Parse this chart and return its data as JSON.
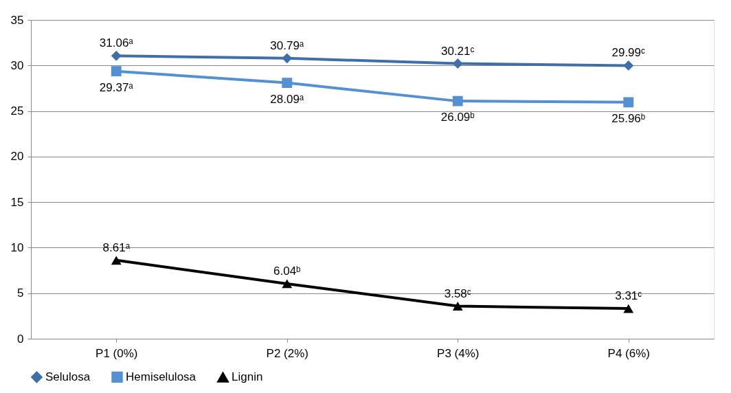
{
  "chart_data": {
    "type": "line",
    "categories": [
      "P1 (0%)",
      "P2 (2%)",
      "P3 (4%)",
      "P4 (6%)"
    ],
    "series": [
      {
        "name": "Selulosa",
        "color": "#3f6fa8",
        "marker": "diamond",
        "values": [
          31.06,
          30.79,
          30.21,
          29.99
        ],
        "value_labels": [
          "31.06ᵃ",
          "30.79ᵃ",
          "30.21ᶜ",
          "29.99ᶜ"
        ]
      },
      {
        "name": "Hemiselulosa",
        "color": "#5591d2",
        "marker": "square",
        "values": [
          29.37,
          28.09,
          26.09,
          25.96
        ],
        "value_labels": [
          "29.37ᵃ",
          "28.09ᵃ",
          "26.09ᵇ",
          "25.96ᵇ"
        ]
      },
      {
        "name": "Lignin",
        "color": "#000000",
        "marker": "triangle",
        "values": [
          8.61,
          6.04,
          3.58,
          3.31
        ],
        "value_labels": [
          "8.61ᵃ",
          "6.04ᵇ",
          "3.58ᶜ",
          "3.31ᶜ"
        ]
      }
    ],
    "ylim": [
      0,
      35
    ],
    "yticks": [
      0,
      5,
      10,
      15,
      20,
      25,
      30,
      35
    ],
    "grid": "y",
    "legend": "bottom",
    "line_style": "solid"
  }
}
